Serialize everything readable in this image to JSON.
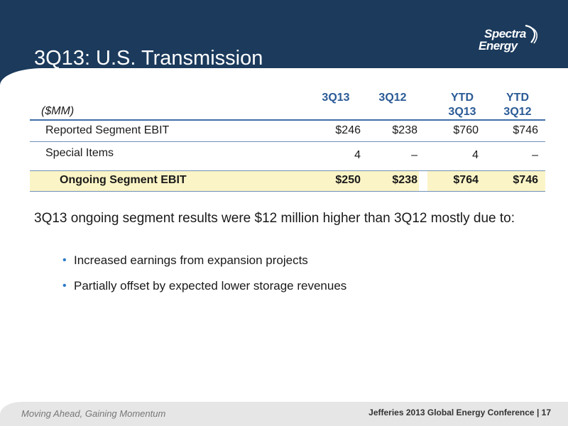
{
  "slide": {
    "title": "3Q13: U.S. Transmission"
  },
  "logo": {
    "line1": "Spectra",
    "line2": "Energy"
  },
  "table": {
    "unit_label": "($MM)",
    "columns": [
      {
        "line1": "",
        "line2": "3Q13"
      },
      {
        "line1": "",
        "line2": "3Q12"
      },
      {
        "line1": "YTD",
        "line2": "3Q13"
      },
      {
        "line1": "YTD",
        "line2": "3Q12"
      }
    ],
    "rows": [
      {
        "label": "Reported Segment EBIT",
        "values": [
          "$246",
          "$238",
          "$760",
          "$746"
        ]
      },
      {
        "label": "Special Items",
        "values": [
          "4",
          "–",
          "4",
          "–"
        ]
      },
      {
        "label": "Ongoing Segment EBIT",
        "values": [
          "$250",
          "$238",
          "$764",
          "$746"
        ]
      }
    ]
  },
  "body": {
    "paragraph": "3Q13 ongoing segment results were $12 million higher than 3Q12 mostly due to:",
    "bullets": [
      "Increased earnings from expansion projects",
      "Partially offset by expected lower storage  revenues"
    ]
  },
  "footer": {
    "tagline": "Moving Ahead, Gaining Momentum",
    "conference": "Jefferies 2013 Global Energy Conference",
    "page_number": "17"
  },
  "colors": {
    "header_band": "#1b3a5c",
    "accent_blue": "#2a5a96",
    "total_row_highlight": "#fbf4c6",
    "bullet": "#2a7ac8"
  }
}
